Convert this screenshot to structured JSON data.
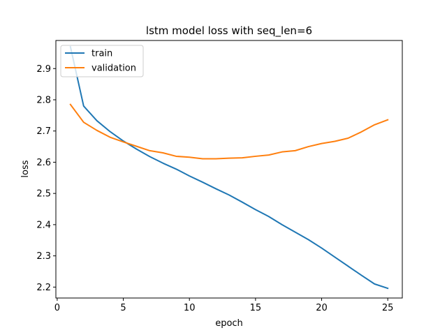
{
  "chart_data": {
    "type": "line",
    "title": "lstm model loss with seq_len=6",
    "xlabel": "epoch",
    "ylabel": "loss",
    "xlim": [
      -0.1,
      26.1
    ],
    "ylim": [
      2.165,
      2.99
    ],
    "xticks": [
      0,
      5,
      10,
      15,
      20,
      25
    ],
    "yticks": [
      2.2,
      2.3,
      2.4,
      2.5,
      2.6,
      2.7,
      2.8,
      2.9
    ],
    "grid": false,
    "legend_position": "upper-left",
    "x": [
      1,
      2,
      3,
      4,
      5,
      6,
      7,
      8,
      9,
      10,
      11,
      12,
      13,
      14,
      15,
      16,
      17,
      18,
      19,
      20,
      21,
      22,
      23,
      24,
      25
    ],
    "series": [
      {
        "name": "train",
        "color": "#1f77b4",
        "values": [
          2.97,
          2.78,
          2.733,
          2.698,
          2.668,
          2.642,
          2.618,
          2.597,
          2.578,
          2.556,
          2.536,
          2.515,
          2.495,
          2.472,
          2.448,
          2.426,
          2.4,
          2.376,
          2.352,
          2.325,
          2.296,
          2.267,
          2.238,
          2.21,
          2.196
        ]
      },
      {
        "name": "validation",
        "color": "#ff7f0e",
        "values": [
          2.785,
          2.728,
          2.702,
          2.68,
          2.665,
          2.651,
          2.637,
          2.63,
          2.619,
          2.616,
          2.611,
          2.611,
          2.613,
          2.614,
          2.619,
          2.623,
          2.633,
          2.637,
          2.65,
          2.66,
          2.667,
          2.677,
          2.697,
          2.72,
          2.736
        ]
      }
    ]
  }
}
